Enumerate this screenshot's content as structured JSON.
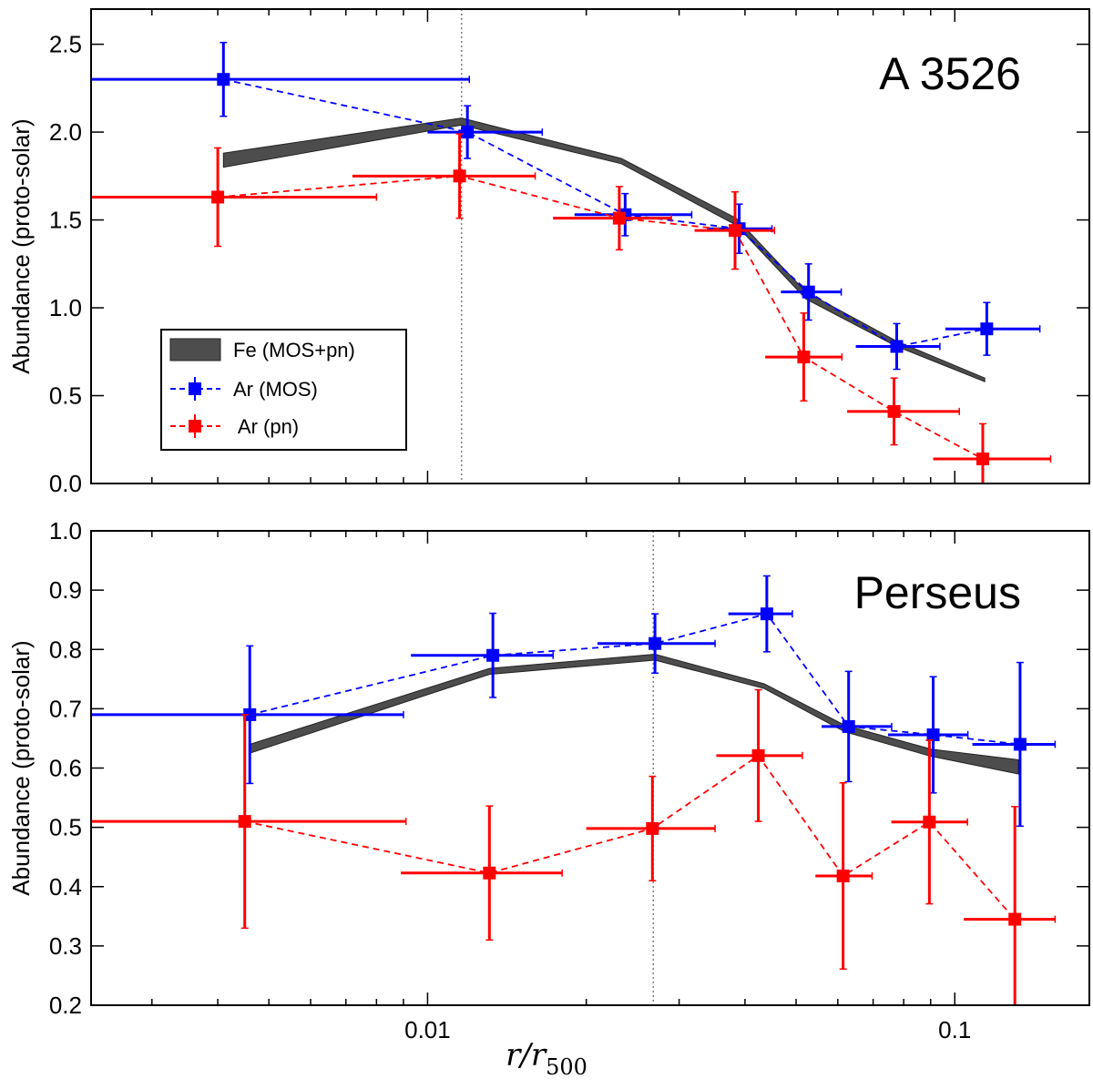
{
  "colors": {
    "fe": "#4d4d4d",
    "fe_edge": "#222222",
    "ar_mos": "#0000ff",
    "ar_pn": "#ff0000",
    "refline": "#808080"
  },
  "xlabel": {
    "main": "r/r",
    "sub": "500"
  },
  "legend": [
    "Fe (MOS+pn)",
    "Ar (MOS)",
    " Ar (pn)"
  ],
  "chart_data": [
    {
      "type": "scatter",
      "title": "A 3526",
      "ylabel": "Abundance (proto-solar)",
      "xscale": "log",
      "xlim": [
        0.0023,
        0.18
      ],
      "ylim": [
        0.0,
        2.7
      ],
      "xticks": [
        0.01,
        0.1
      ],
      "xtick_labels": [
        "",
        ""
      ],
      "yticks": [
        0.0,
        0.5,
        1.0,
        1.5,
        2.0,
        2.5
      ],
      "ytick_labels": [
        "0.0",
        "0.5",
        "1.0",
        "1.5",
        "2.0",
        "2.5"
      ],
      "ref_line_x": 0.0116,
      "legend_loc": "center-left",
      "fe_band": {
        "name": "Fe (MOS+pn)",
        "x": [
          0.0041,
          0.0116,
          0.0233,
          0.0385,
          0.0522,
          0.0776,
          0.114
        ],
        "lower": [
          1.8,
          2.04,
          1.82,
          1.47,
          1.05,
          0.78,
          0.58
        ],
        "upper": [
          1.88,
          2.08,
          1.85,
          1.51,
          1.09,
          0.81,
          0.6
        ]
      },
      "series": [
        {
          "name": "Ar (MOS)",
          "x": [
            0.0041,
            0.0119,
            0.0237,
            0.039,
            0.0528,
            0.0776,
            0.115
          ],
          "xerr_low": [
            0.0041,
            0.0019,
            0.0047,
            0.0051,
            0.006,
            0.0127,
            0.019
          ],
          "xerr_high": [
            0.0079,
            0.0046,
            0.008,
            0.006,
            0.0081,
            0.0161,
            0.03
          ],
          "y": [
            2.3,
            2.0,
            1.53,
            1.45,
            1.09,
            0.78,
            0.88
          ],
          "yerr": [
            0.21,
            0.15,
            0.12,
            0.14,
            0.16,
            0.13,
            0.15
          ]
        },
        {
          "name": "Ar (pn)",
          "x": [
            0.004,
            0.0115,
            0.0231,
            0.0383,
            0.0517,
            0.0767,
            0.113
          ],
          "xerr_low": [
            0.004,
            0.0043,
            0.0058,
            0.0062,
            0.008,
            0.0142,
            0.022
          ],
          "xerr_high": [
            0.004,
            0.0045,
            0.0059,
            0.0072,
            0.0094,
            0.0253,
            0.039
          ],
          "y": [
            1.63,
            1.75,
            1.51,
            1.44,
            0.72,
            0.41,
            0.14
          ],
          "yerr": [
            0.28,
            0.24,
            0.18,
            0.22,
            0.25,
            0.19,
            0.2
          ]
        }
      ]
    },
    {
      "type": "scatter",
      "title": "Perseus",
      "ylabel": "Abundance (proto-solar)",
      "xscale": "log",
      "xlim": [
        0.0023,
        0.18
      ],
      "ylim": [
        0.2,
        1.0
      ],
      "xticks": [
        0.01,
        0.1
      ],
      "xtick_labels": [
        "0.01",
        "0.1"
      ],
      "yticks": [
        0.2,
        0.3,
        0.4,
        0.5,
        0.6,
        0.7,
        0.8,
        0.9,
        1.0
      ],
      "ytick_labels": [
        "0.2",
        "0.3",
        "0.4",
        "0.5",
        "0.6",
        "0.7",
        "0.8",
        "0.9",
        "1.0"
      ],
      "ref_line_x": 0.0268,
      "legend_loc": "none",
      "fe_band": {
        "name": "Fe (MOS+pn)",
        "x": [
          0.0046,
          0.0131,
          0.027,
          0.0435,
          0.0619,
          0.0901,
          0.132
        ],
        "lower": [
          0.625,
          0.758,
          0.782,
          0.734,
          0.661,
          0.62,
          0.59
        ],
        "upper": [
          0.64,
          0.768,
          0.792,
          0.742,
          0.672,
          0.632,
          0.614
        ]
      },
      "series": [
        {
          "name": "Ar (MOS)",
          "x": [
            0.0046,
            0.0133,
            0.027,
            0.044,
            0.0629,
            0.091,
            0.133
          ],
          "xerr_low": [
            0.0046,
            0.004,
            0.006,
            0.0068,
            0.007,
            0.0163,
            0.025
          ],
          "xerr_high": [
            0.0044,
            0.004,
            0.0081,
            0.0052,
            0.013,
            0.0149,
            0.022
          ],
          "y": [
            0.69,
            0.79,
            0.81,
            0.86,
            0.67,
            0.656,
            0.64
          ],
          "yerr": [
            0.116,
            0.071,
            0.05,
            0.064,
            0.093,
            0.098,
            0.138
          ]
        },
        {
          "name": "Ar (pn)",
          "x": [
            0.0045,
            0.0131,
            0.0267,
            0.0424,
            0.0614,
            0.0895,
            0.13
          ],
          "xerr_low": [
            0.0045,
            0.0042,
            0.0067,
            0.0071,
            0.007,
            0.0137,
            0.026
          ],
          "xerr_high": [
            0.0046,
            0.0049,
            0.0084,
            0.009,
            0.0083,
            0.0162,
            0.025
          ],
          "y": [
            0.51,
            0.423,
            0.498,
            0.621,
            0.418,
            0.509,
            0.345
          ],
          "yerr": [
            0.18,
            0.113,
            0.088,
            0.111,
            0.157,
            0.138,
            0.19
          ]
        }
      ]
    }
  ]
}
